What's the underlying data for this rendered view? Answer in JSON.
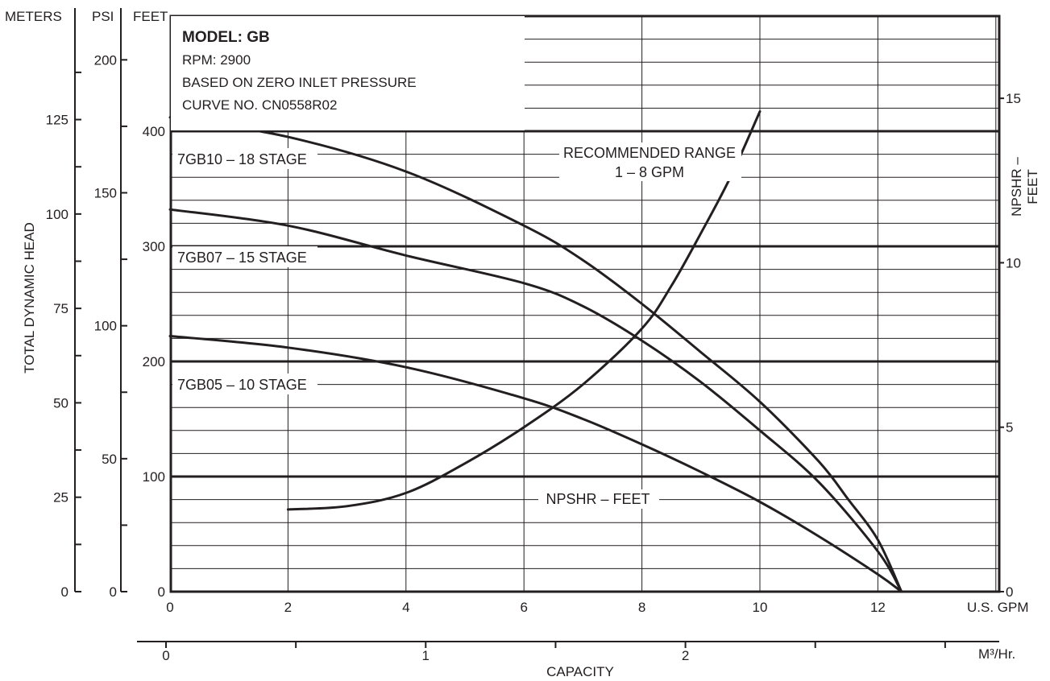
{
  "info": {
    "model": "MODEL: GB",
    "rpm": "RPM: 2900",
    "basis": "BASED ON ZERO INLET PRESSURE",
    "curve_no": "CURVE NO. CN0558R02"
  },
  "axis_titles": {
    "meters": "METERS",
    "psi": "PSI",
    "feet": "FEET",
    "tdh": "TOTAL DYNAMIC HEAD",
    "npshr": "NPSHR – FEET",
    "gpm": "U.S. GPM",
    "m3hr": "M³/Hr.",
    "capacity": "CAPACITY"
  },
  "annotations": {
    "recommended_1": "RECOMMENDED RANGE",
    "recommended_2": "1 – 8 GPM"
  },
  "colors": {
    "ink": "#231f20",
    "background": "#ffffff"
  },
  "chart_data": {
    "type": "line",
    "xlabel": "CAPACITY",
    "x_unit": "U.S. GPM",
    "xlim": [
      0,
      14
    ],
    "ylabel": "TOTAL DYNAMIC HEAD",
    "y_unit": "FEET",
    "ylim": [
      0,
      450
    ],
    "grid": true,
    "axes": {
      "feet": {
        "ticks": [
          0,
          100,
          200,
          300,
          400
        ],
        "labels": [
          "0",
          "100",
          "200",
          "300",
          "400"
        ]
      },
      "psi": {
        "ticks": [
          0,
          50,
          100,
          150,
          200
        ],
        "labels": [
          "0",
          "50",
          "100",
          "150",
          "200"
        ]
      },
      "meters": {
        "ticks": [
          0,
          25,
          50,
          75,
          100,
          125
        ],
        "labels": [
          "0",
          "25",
          "50",
          "75",
          "100",
          "125"
        ]
      },
      "npshr_feet": {
        "ticks": [
          0,
          5,
          10,
          15
        ],
        "labels": [
          "0",
          "5",
          "10",
          "15"
        ]
      },
      "gpm": {
        "ticks": [
          0,
          2,
          4,
          6,
          8,
          10,
          12
        ],
        "labels": [
          "0",
          "2",
          "4",
          "6",
          "8",
          "10",
          "12"
        ]
      },
      "m3_hr": {
        "ticks": [
          0,
          1,
          2
        ],
        "labels": [
          "0",
          "1",
          "2"
        ]
      }
    },
    "series": [
      {
        "name": "7GB10 – 18 STAGE",
        "axis": "feet",
        "x": [
          0,
          2,
          4,
          6,
          7,
          8,
          9,
          10,
          11,
          11.5,
          12,
          12.4
        ],
        "y": [
          412,
          395,
          365,
          318,
          288,
          250,
          208,
          165,
          113,
          80,
          45,
          0
        ]
      },
      {
        "name": "7GB07 – 15 STAGE",
        "axis": "feet",
        "x": [
          0,
          2,
          4,
          6,
          7,
          8,
          9,
          10,
          11,
          12,
          12.4
        ],
        "y": [
          332,
          318,
          292,
          268,
          248,
          218,
          182,
          140,
          95,
          35,
          0
        ]
      },
      {
        "name": "7GB05 – 10 STAGE",
        "axis": "feet",
        "x": [
          0,
          2,
          4,
          6,
          7,
          8,
          9,
          10,
          11,
          12,
          12.4
        ],
        "y": [
          222,
          212,
          195,
          168,
          150,
          128,
          104,
          78,
          48,
          15,
          0
        ]
      },
      {
        "name": "NPSHR – FEET",
        "axis": "npshr_feet",
        "x": [
          2,
          3,
          4,
          5,
          6,
          7,
          8,
          8.5,
          9,
          9.5,
          10
        ],
        "y": [
          2.5,
          2.6,
          3.0,
          3.9,
          5.0,
          6.3,
          8.0,
          9.3,
          10.9,
          12.6,
          14.6
        ]
      }
    ]
  }
}
